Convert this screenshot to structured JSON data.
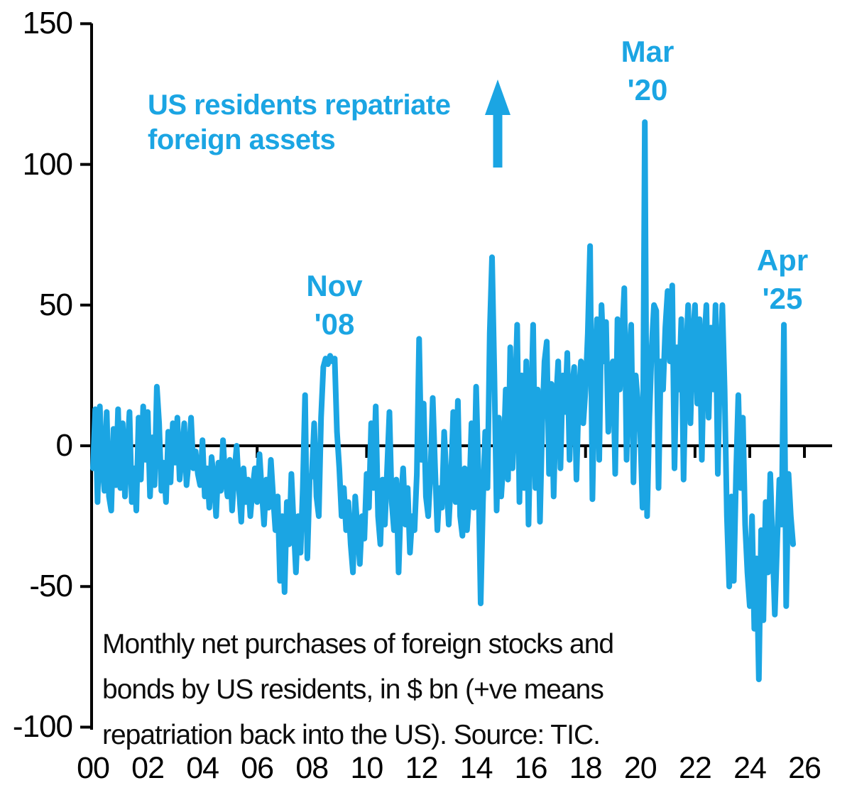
{
  "colors": {
    "accent": "#1BA5E3",
    "axis": "#000000",
    "background": "#FFFFFF"
  },
  "chart_data": {
    "type": "line",
    "title": "",
    "xlabel": "",
    "ylabel": "",
    "x_start": "2000-01",
    "x_frequency": "monthly",
    "x_tick_labels": [
      "00",
      "02",
      "04",
      "06",
      "08",
      "10",
      "12",
      "14",
      "16",
      "18",
      "20",
      "22",
      "24",
      "26"
    ],
    "y_ticks": [
      150,
      100,
      50,
      0,
      -50,
      -100
    ],
    "ylim": [
      -100,
      150
    ],
    "grid": "zero-line-only",
    "legend": "none",
    "series": [
      {
        "name": "Monthly net purchases of foreign stocks and bonds by US residents ($ bn)",
        "values": [
          -8,
          13,
          -20,
          14,
          -6,
          -16,
          12,
          -18,
          -23,
          6,
          -14,
          13,
          -15,
          8,
          -18,
          -3,
          12,
          -20,
          -8,
          -23,
          10,
          -12,
          14,
          -5,
          12,
          -18,
          3,
          -14,
          21,
          8,
          -16,
          -6,
          -20,
          5,
          -13,
          8,
          -6,
          10,
          -12,
          -3,
          8,
          -14,
          -5,
          10,
          -8,
          -2,
          -10,
          -14,
          2,
          -18,
          -8,
          -22,
          -4,
          -12,
          -25,
          -6,
          -16,
          2,
          -12,
          -18,
          -5,
          -23,
          -10,
          0,
          -15,
          -27,
          -8,
          -20,
          -12,
          -25,
          -15,
          -8,
          -20,
          -3,
          -16,
          -28,
          -12,
          -22,
          -5,
          -18,
          -30,
          -18,
          -48,
          -25,
          -52,
          -20,
          -35,
          -10,
          -28,
          -45,
          -25,
          -38,
          -15,
          18,
          -40,
          -12,
          -10,
          8,
          -18,
          -25,
          10,
          28,
          31,
          29,
          32,
          30,
          31,
          5,
          -8,
          -25,
          -15,
          -30,
          -20,
          -35,
          -45,
          -18,
          -30,
          -42,
          -25,
          -33,
          -10,
          -22,
          8,
          -15,
          14,
          -25,
          -35,
          -12,
          -28,
          -8,
          12,
          -20,
          -30,
          -12,
          -45,
          -20,
          -8,
          -28,
          -15,
          -38,
          -25,
          -30,
          -10,
          38,
          -5,
          15,
          -18,
          -25,
          -10,
          17,
          -8,
          -30,
          -15,
          -22,
          5,
          -12,
          -28,
          -12,
          12,
          -20,
          16,
          -25,
          -32,
          -8,
          -30,
          -18,
          8,
          -22,
          21,
          -10,
          -56,
          -20,
          5,
          -15,
          40,
          67,
          25,
          -23,
          10,
          -18,
          -5,
          20,
          -12,
          35,
          -8,
          15,
          43,
          -20,
          25,
          -15,
          30,
          -28,
          10,
          43,
          -15,
          20,
          -27,
          8,
          30,
          37,
          -10,
          22,
          -18,
          15,
          30,
          -8,
          25,
          12,
          33,
          -5,
          20,
          28,
          -12,
          18,
          30,
          8,
          20,
          40,
          71,
          -19,
          25,
          45,
          -5,
          50,
          30,
          44,
          5,
          28,
          30,
          -10,
          45,
          20,
          38,
          56,
          -5,
          30,
          43,
          -13,
          25,
          15,
          5,
          -22,
          115,
          -25,
          10,
          35,
          50,
          48,
          -15,
          30,
          20,
          42,
          55,
          30,
          57,
          -8,
          35,
          20,
          45,
          -12,
          30,
          50,
          8,
          38,
          50,
          15,
          45,
          -5,
          35,
          50,
          10,
          42,
          20,
          50,
          -10,
          30,
          50,
          20,
          -25,
          -50,
          -18,
          -48,
          -10,
          18,
          -15,
          10,
          -28,
          -45,
          -57,
          -25,
          -65,
          -40,
          -83,
          -30,
          -62,
          -20,
          -45,
          -10,
          -35,
          -60,
          -35,
          -12,
          -28,
          43,
          -57,
          -10,
          -25,
          -35
        ]
      }
    ],
    "annotations": {
      "note": "US residents repatriate\nforeign assets",
      "arrow": "up-arrow",
      "peak_labels": [
        {
          "text": "Nov\n'08",
          "point": "2008-11",
          "value": 31
        },
        {
          "text": "Mar\n'20",
          "point": "2020-03",
          "value": 115
        },
        {
          "text": "Apr\n'25",
          "point": "2025-04",
          "value": 43
        }
      ]
    },
    "caption": "Monthly net purchases of foreign stocks and\nbonds by US residents, in $ bn (+ve means\nrepatriation back into the US). Source: TIC."
  }
}
